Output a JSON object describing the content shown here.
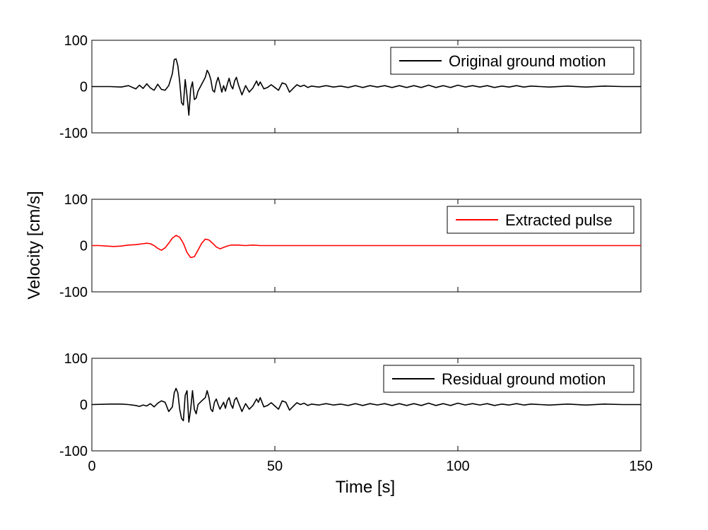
{
  "figure": {
    "ylabel": "Velocity [cm/s]",
    "xlabel": "Time [s]"
  },
  "chart_data": [
    {
      "type": "line",
      "xlim": [
        0,
        150
      ],
      "ylim": [
        -100,
        100
      ],
      "x_ticks": [
        "0",
        "50",
        "100",
        "150"
      ],
      "y_ticks": [
        "100",
        "0",
        "-100"
      ],
      "grid": false,
      "legend_position": "top-right",
      "series": [
        {
          "name": "Original ground motion",
          "color": "#000000",
          "points": [
            [
              0,
              0
            ],
            [
              5,
              0
            ],
            [
              8,
              -1
            ],
            [
              10,
              2
            ],
            [
              12,
              -5
            ],
            [
              13,
              3
            ],
            [
              14,
              -4
            ],
            [
              15,
              6
            ],
            [
              16,
              -3
            ],
            [
              17,
              -8
            ],
            [
              18,
              5
            ],
            [
              19,
              -6
            ],
            [
              20,
              -8
            ],
            [
              21,
              2
            ],
            [
              22,
              28
            ],
            [
              22.5,
              58
            ],
            [
              23,
              60
            ],
            [
              23.5,
              45
            ],
            [
              24,
              10
            ],
            [
              24.5,
              -35
            ],
            [
              25,
              -40
            ],
            [
              25.5,
              15
            ],
            [
              26,
              -20
            ],
            [
              26.5,
              -62
            ],
            [
              27,
              -5
            ],
            [
              27.5,
              10
            ],
            [
              28,
              -28
            ],
            [
              28.5,
              -25
            ],
            [
              29,
              -10
            ],
            [
              30,
              5
            ],
            [
              31,
              20
            ],
            [
              31.5,
              35
            ],
            [
              32,
              28
            ],
            [
              32.5,
              15
            ],
            [
              33,
              -8
            ],
            [
              33.5,
              -12
            ],
            [
              34,
              8
            ],
            [
              34.5,
              20
            ],
            [
              35,
              5
            ],
            [
              35.5,
              -12
            ],
            [
              36,
              2
            ],
            [
              36.5,
              -10
            ],
            [
              37,
              5
            ],
            [
              37.5,
              18
            ],
            [
              38,
              2
            ],
            [
              38.5,
              -5
            ],
            [
              39,
              12
            ],
            [
              39.5,
              20
            ],
            [
              40,
              5
            ],
            [
              41,
              -18
            ],
            [
              42,
              2
            ],
            [
              43,
              -12
            ],
            [
              44,
              -3
            ],
            [
              45,
              12
            ],
            [
              45.5,
              2
            ],
            [
              46,
              10
            ],
            [
              47,
              -5
            ],
            [
              48,
              -2
            ],
            [
              49,
              4
            ],
            [
              50,
              -2
            ],
            [
              51,
              -8
            ],
            [
              52,
              8
            ],
            [
              53,
              5
            ],
            [
              54,
              -12
            ],
            [
              55,
              -4
            ],
            [
              56,
              4
            ],
            [
              57,
              0
            ],
            [
              58,
              3
            ],
            [
              59,
              -2
            ],
            [
              60,
              1
            ],
            [
              62,
              -1
            ],
            [
              64,
              2
            ],
            [
              66,
              -1
            ],
            [
              68,
              1
            ],
            [
              70,
              -2
            ],
            [
              72,
              2
            ],
            [
              74,
              -2
            ],
            [
              76,
              2
            ],
            [
              78,
              -1
            ],
            [
              80,
              2
            ],
            [
              82,
              -2
            ],
            [
              84,
              2
            ],
            [
              86,
              -2
            ],
            [
              88,
              2
            ],
            [
              90,
              -2
            ],
            [
              92,
              3
            ],
            [
              94,
              -2
            ],
            [
              96,
              2
            ],
            [
              98,
              -2
            ],
            [
              100,
              3
            ],
            [
              102,
              -1
            ],
            [
              104,
              2
            ],
            [
              106,
              -1
            ],
            [
              108,
              2
            ],
            [
              110,
              -2
            ],
            [
              112,
              1
            ],
            [
              114,
              -1
            ],
            [
              116,
              2
            ],
            [
              118,
              -1
            ],
            [
              120,
              1
            ],
            [
              125,
              -1
            ],
            [
              130,
              1
            ],
            [
              135,
              -1
            ],
            [
              140,
              1
            ],
            [
              145,
              0
            ],
            [
              150,
              0
            ]
          ]
        }
      ]
    },
    {
      "type": "line",
      "xlim": [
        0,
        150
      ],
      "ylim": [
        -100,
        100
      ],
      "x_ticks": [
        "0",
        "50",
        "100",
        "150"
      ],
      "y_ticks": [
        "100",
        "0",
        "-100"
      ],
      "grid": false,
      "legend_position": "top-right",
      "series": [
        {
          "name": "Extracted pulse",
          "color": "#ff0000",
          "points": [
            [
              0,
              0
            ],
            [
              2,
              0
            ],
            [
              4,
              -1
            ],
            [
              6,
              -2
            ],
            [
              8,
              -1
            ],
            [
              10,
              1
            ],
            [
              12,
              2
            ],
            [
              14,
              4
            ],
            [
              15,
              5
            ],
            [
              16,
              4
            ],
            [
              17,
              0
            ],
            [
              18,
              -6
            ],
            [
              19,
              -10
            ],
            [
              20,
              -5
            ],
            [
              21,
              5
            ],
            [
              22,
              16
            ],
            [
              23,
              22
            ],
            [
              24,
              18
            ],
            [
              25,
              5
            ],
            [
              26,
              -15
            ],
            [
              27,
              -26
            ],
            [
              28,
              -24
            ],
            [
              29,
              -10
            ],
            [
              30,
              5
            ],
            [
              31,
              14
            ],
            [
              32,
              12
            ],
            [
              33,
              5
            ],
            [
              34,
              -3
            ],
            [
              35,
              -7
            ],
            [
              36,
              -4
            ],
            [
              37,
              -1
            ],
            [
              38,
              1
            ],
            [
              40,
              1
            ],
            [
              42,
              0
            ],
            [
              44,
              1
            ],
            [
              46,
              0
            ],
            [
              48,
              0
            ],
            [
              50,
              0
            ],
            [
              150,
              0
            ]
          ]
        }
      ]
    },
    {
      "type": "line",
      "xlim": [
        0,
        150
      ],
      "ylim": [
        -100,
        100
      ],
      "x_ticks": [
        "0",
        "50",
        "100",
        "150"
      ],
      "y_ticks": [
        "100",
        "0",
        "-100"
      ],
      "grid": false,
      "legend_position": "top-right",
      "series": [
        {
          "name": "Residual ground motion",
          "color": "#000000",
          "points": [
            [
              0,
              0
            ],
            [
              5,
              1
            ],
            [
              8,
              1
            ],
            [
              10,
              0
            ],
            [
              12,
              -2
            ],
            [
              13,
              -4
            ],
            [
              14,
              -1
            ],
            [
              15,
              -3
            ],
            [
              16,
              2
            ],
            [
              17,
              -5
            ],
            [
              18,
              3
            ],
            [
              19,
              8
            ],
            [
              20,
              5
            ],
            [
              21,
              -15
            ],
            [
              22,
              -5
            ],
            [
              22.5,
              25
            ],
            [
              23,
              35
            ],
            [
              23.5,
              25
            ],
            [
              24,
              -10
            ],
            [
              24.5,
              -30
            ],
            [
              25,
              -35
            ],
            [
              25.5,
              20
            ],
            [
              26,
              30
            ],
            [
              26.5,
              -38
            ],
            [
              27,
              -10
            ],
            [
              27.5,
              30
            ],
            [
              28,
              -10
            ],
            [
              28.5,
              -20
            ],
            [
              29,
              0
            ],
            [
              30,
              8
            ],
            [
              31,
              15
            ],
            [
              31.5,
              30
            ],
            [
              32,
              15
            ],
            [
              32.5,
              -10
            ],
            [
              33,
              -15
            ],
            [
              33.5,
              5
            ],
            [
              34,
              12
            ],
            [
              34.5,
              0
            ],
            [
              35,
              -10
            ],
            [
              36,
              5
            ],
            [
              36.5,
              -8
            ],
            [
              37,
              8
            ],
            [
              37.5,
              15
            ],
            [
              38,
              0
            ],
            [
              38.5,
              -8
            ],
            [
              39,
              10
            ],
            [
              39.5,
              15
            ],
            [
              40,
              5
            ],
            [
              41,
              -15
            ],
            [
              42,
              2
            ],
            [
              43,
              -10
            ],
            [
              44,
              -2
            ],
            [
              45,
              12
            ],
            [
              45.5,
              5
            ],
            [
              46,
              15
            ],
            [
              47,
              -5
            ],
            [
              48,
              -2
            ],
            [
              49,
              4
            ],
            [
              50,
              -3
            ],
            [
              51,
              -10
            ],
            [
              52,
              8
            ],
            [
              53,
              5
            ],
            [
              54,
              -12
            ],
            [
              55,
              -4
            ],
            [
              56,
              4
            ],
            [
              57,
              0
            ],
            [
              58,
              3
            ],
            [
              59,
              -2
            ],
            [
              60,
              1
            ],
            [
              62,
              -1
            ],
            [
              64,
              2
            ],
            [
              66,
              -1
            ],
            [
              68,
              1
            ],
            [
              70,
              -2
            ],
            [
              72,
              2
            ],
            [
              74,
              -2
            ],
            [
              76,
              2
            ],
            [
              78,
              -1
            ],
            [
              80,
              2
            ],
            [
              82,
              -2
            ],
            [
              84,
              2
            ],
            [
              86,
              -2
            ],
            [
              88,
              2
            ],
            [
              90,
              -2
            ],
            [
              92,
              3
            ],
            [
              94,
              -2
            ],
            [
              96,
              2
            ],
            [
              98,
              -2
            ],
            [
              100,
              3
            ],
            [
              102,
              -1
            ],
            [
              104,
              2
            ],
            [
              106,
              -1
            ],
            [
              108,
              2
            ],
            [
              110,
              -2
            ],
            [
              112,
              1
            ],
            [
              114,
              -1
            ],
            [
              116,
              2
            ],
            [
              118,
              -1
            ],
            [
              120,
              1
            ],
            [
              125,
              -1
            ],
            [
              130,
              1
            ],
            [
              135,
              -1
            ],
            [
              140,
              1
            ],
            [
              145,
              0
            ],
            [
              150,
              0
            ]
          ]
        }
      ]
    }
  ]
}
